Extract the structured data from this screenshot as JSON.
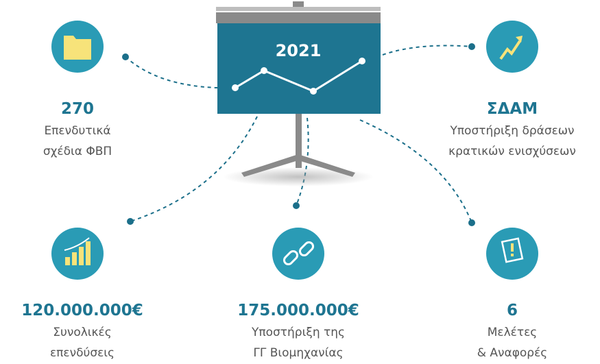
{
  "board": {
    "year": "2021"
  },
  "items": [
    {
      "value": "270",
      "lines": [
        "Επενδυτικά",
        "σχέδια ΦΒΠ"
      ]
    },
    {
      "value": "ΣΔΑΜ",
      "lines": [
        "Υποστήριξη δράσεων",
        "κρατικών ενισχύσεων"
      ]
    },
    {
      "value": "120.000.000€",
      "lines": [
        "Συνολικές",
        "επενδύσεις"
      ]
    },
    {
      "value": "175.000.000€",
      "lines": [
        "Υποστήριξη της",
        "ΓΓ Βιομηχανίας"
      ]
    },
    {
      "value": "6",
      "lines": [
        "Μελέτες",
        "& Αναφορές"
      ]
    }
  ]
}
